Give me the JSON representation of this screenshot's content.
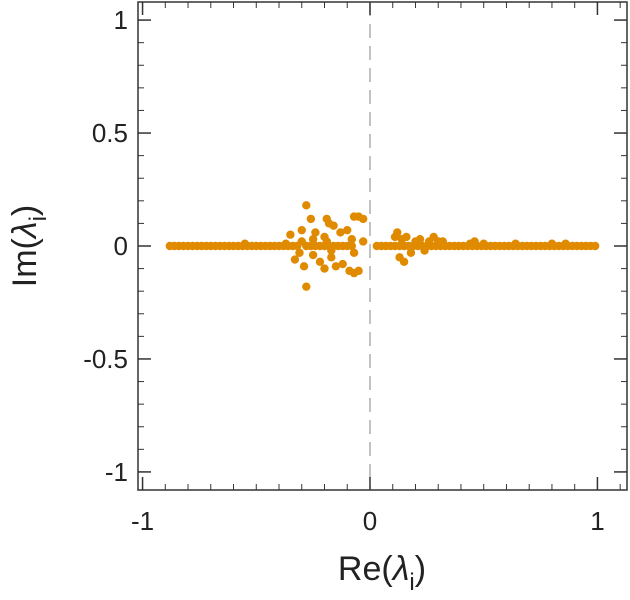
{
  "chart_data": {
    "type": "scatter",
    "title": "",
    "xlabel": "Re(λi)",
    "ylabel": "Im(λi)",
    "xlabel_parts": {
      "prefix": "Re(",
      "symbol": "λ",
      "subscript": "i",
      "suffix": ")"
    },
    "ylabel_parts": {
      "prefix": "Im(",
      "symbol": "λ",
      "subscript": "i",
      "suffix": ")"
    },
    "xlim": [
      -1.02,
      1.13
    ],
    "ylim": [
      -1.08,
      1.08
    ],
    "x_ticks": [
      -1,
      0,
      1
    ],
    "x_tick_labels": [
      "-1",
      "0",
      "1"
    ],
    "y_ticks": [
      -1,
      -0.5,
      0,
      0.5,
      1
    ],
    "y_tick_labels": [
      "-1",
      "-0.5",
      "0",
      "0.5",
      "1"
    ],
    "minor_tick_step": 0.1,
    "grid": false,
    "reference_lines": [
      {
        "axis": "x",
        "value": 0,
        "style": "dashed"
      }
    ],
    "marker_color": "#e08a00",
    "series": [
      {
        "points": [
          {
            "x": -0.88,
            "y": 0
          },
          {
            "x": -0.86,
            "y": 0
          },
          {
            "x": -0.84,
            "y": 0
          },
          {
            "x": -0.82,
            "y": 0
          },
          {
            "x": -0.8,
            "y": 0
          },
          {
            "x": -0.78,
            "y": 0
          },
          {
            "x": -0.76,
            "y": 0
          },
          {
            "x": -0.74,
            "y": 0
          },
          {
            "x": -0.72,
            "y": 0
          },
          {
            "x": -0.7,
            "y": 0
          },
          {
            "x": -0.68,
            "y": 0
          },
          {
            "x": -0.66,
            "y": 0
          },
          {
            "x": -0.64,
            "y": 0
          },
          {
            "x": -0.62,
            "y": 0
          },
          {
            "x": -0.6,
            "y": 0
          },
          {
            "x": -0.58,
            "y": 0
          },
          {
            "x": -0.56,
            "y": 0
          },
          {
            "x": -0.55,
            "y": 0.01
          },
          {
            "x": -0.54,
            "y": 0
          },
          {
            "x": -0.52,
            "y": 0
          },
          {
            "x": -0.5,
            "y": 0
          },
          {
            "x": -0.48,
            "y": 0
          },
          {
            "x": -0.46,
            "y": 0
          },
          {
            "x": -0.44,
            "y": 0
          },
          {
            "x": -0.42,
            "y": 0
          },
          {
            "x": -0.4,
            "y": 0
          },
          {
            "x": -0.38,
            "y": 0
          },
          {
            "x": -0.37,
            "y": 0.01
          },
          {
            "x": -0.36,
            "y": 0
          },
          {
            "x": -0.34,
            "y": 0
          },
          {
            "x": -0.32,
            "y": 0
          },
          {
            "x": -0.31,
            "y": -0.03
          },
          {
            "x": -0.3,
            "y": 0.02
          },
          {
            "x": -0.28,
            "y": 0
          },
          {
            "x": -0.26,
            "y": 0
          },
          {
            "x": -0.25,
            "y": 0.03
          },
          {
            "x": -0.24,
            "y": 0
          },
          {
            "x": -0.22,
            "y": 0
          },
          {
            "x": -0.2,
            "y": 0
          },
          {
            "x": -0.19,
            "y": 0.02
          },
          {
            "x": -0.18,
            "y": 0
          },
          {
            "x": -0.17,
            "y": -0.02
          },
          {
            "x": -0.16,
            "y": 0
          },
          {
            "x": -0.14,
            "y": 0
          },
          {
            "x": -0.12,
            "y": 0
          },
          {
            "x": -0.1,
            "y": 0
          },
          {
            "x": -0.08,
            "y": 0
          },
          {
            "x": -0.35,
            "y": 0.05
          },
          {
            "x": -0.33,
            "y": -0.06
          },
          {
            "x": -0.3,
            "y": 0.07
          },
          {
            "x": -0.29,
            "y": -0.09
          },
          {
            "x": -0.28,
            "y": 0.18
          },
          {
            "x": -0.28,
            "y": -0.18
          },
          {
            "x": -0.26,
            "y": 0.12
          },
          {
            "x": -0.25,
            "y": -0.04
          },
          {
            "x": -0.24,
            "y": 0.06
          },
          {
            "x": -0.22,
            "y": -0.07
          },
          {
            "x": -0.2,
            "y": 0.04
          },
          {
            "x": -0.18,
            "y": 0.1
          },
          {
            "x": -0.17,
            "y": -0.05
          },
          {
            "x": -0.19,
            "y": 0.12
          },
          {
            "x": -0.2,
            "y": -0.1
          },
          {
            "x": -0.16,
            "y": 0.09
          },
          {
            "x": -0.15,
            "y": -0.09
          },
          {
            "x": -0.13,
            "y": 0.06
          },
          {
            "x": -0.12,
            "y": -0.08
          },
          {
            "x": -0.1,
            "y": 0.07
          },
          {
            "x": -0.09,
            "y": -0.11
          },
          {
            "x": -0.08,
            "y": 0.03
          },
          {
            "x": -0.07,
            "y": -0.03
          },
          {
            "x": -0.07,
            "y": 0.13
          },
          {
            "x": -0.05,
            "y": 0.13
          },
          {
            "x": -0.07,
            "y": -0.12
          },
          {
            "x": -0.05,
            "y": -0.11
          },
          {
            "x": -0.03,
            "y": 0.12
          },
          {
            "x": -0.03,
            "y": 0.02
          },
          {
            "x": 0.03,
            "y": 0
          },
          {
            "x": 0.05,
            "y": 0
          },
          {
            "x": 0.07,
            "y": 0
          },
          {
            "x": 0.09,
            "y": 0
          },
          {
            "x": 0.11,
            "y": 0
          },
          {
            "x": 0.13,
            "y": 0
          },
          {
            "x": 0.15,
            "y": 0
          },
          {
            "x": 0.17,
            "y": 0
          },
          {
            "x": 0.19,
            "y": 0
          },
          {
            "x": 0.21,
            "y": 0
          },
          {
            "x": 0.23,
            "y": 0
          },
          {
            "x": 0.25,
            "y": 0
          },
          {
            "x": 0.27,
            "y": 0
          },
          {
            "x": 0.29,
            "y": 0
          },
          {
            "x": 0.31,
            "y": 0
          },
          {
            "x": 0.33,
            "y": 0
          },
          {
            "x": 0.35,
            "y": 0
          },
          {
            "x": 0.37,
            "y": 0
          },
          {
            "x": 0.39,
            "y": 0
          },
          {
            "x": 0.41,
            "y": 0
          },
          {
            "x": 0.43,
            "y": 0
          },
          {
            "x": 0.45,
            "y": 0
          },
          {
            "x": 0.47,
            "y": 0
          },
          {
            "x": 0.49,
            "y": 0
          },
          {
            "x": 0.51,
            "y": 0
          },
          {
            "x": 0.53,
            "y": 0
          },
          {
            "x": 0.55,
            "y": 0
          },
          {
            "x": 0.57,
            "y": 0
          },
          {
            "x": 0.59,
            "y": 0
          },
          {
            "x": 0.61,
            "y": 0
          },
          {
            "x": 0.63,
            "y": 0
          },
          {
            "x": 0.65,
            "y": 0
          },
          {
            "x": 0.67,
            "y": 0
          },
          {
            "x": 0.69,
            "y": 0
          },
          {
            "x": 0.71,
            "y": 0
          },
          {
            "x": 0.73,
            "y": 0
          },
          {
            "x": 0.75,
            "y": 0
          },
          {
            "x": 0.77,
            "y": 0
          },
          {
            "x": 0.79,
            "y": 0
          },
          {
            "x": 0.81,
            "y": 0
          },
          {
            "x": 0.83,
            "y": 0
          },
          {
            "x": 0.85,
            "y": 0
          },
          {
            "x": 0.87,
            "y": 0
          },
          {
            "x": 0.89,
            "y": 0
          },
          {
            "x": 0.91,
            "y": 0
          },
          {
            "x": 0.93,
            "y": 0
          },
          {
            "x": 0.95,
            "y": 0
          },
          {
            "x": 0.97,
            "y": 0
          },
          {
            "x": 0.99,
            "y": 0
          },
          {
            "x": 0.11,
            "y": 0.04
          },
          {
            "x": 0.12,
            "y": 0.06
          },
          {
            "x": 0.13,
            "y": -0.05
          },
          {
            "x": 0.14,
            "y": 0.03
          },
          {
            "x": 0.15,
            "y": -0.07
          },
          {
            "x": 0.16,
            "y": 0.04
          },
          {
            "x": 0.18,
            "y": -0.03
          },
          {
            "x": 0.2,
            "y": 0.02
          },
          {
            "x": 0.22,
            "y": 0.03
          },
          {
            "x": 0.24,
            "y": -0.02
          },
          {
            "x": 0.26,
            "y": 0.02
          },
          {
            "x": 0.28,
            "y": 0.04
          },
          {
            "x": 0.3,
            "y": 0.02
          },
          {
            "x": 0.32,
            "y": 0.02
          },
          {
            "x": 0.44,
            "y": 0.01
          },
          {
            "x": 0.46,
            "y": 0.02
          },
          {
            "x": 0.5,
            "y": 0.01
          },
          {
            "x": 0.64,
            "y": 0.01
          },
          {
            "x": 0.8,
            "y": 0.01
          },
          {
            "x": 0.86,
            "y": 0.01
          }
        ]
      }
    ]
  }
}
